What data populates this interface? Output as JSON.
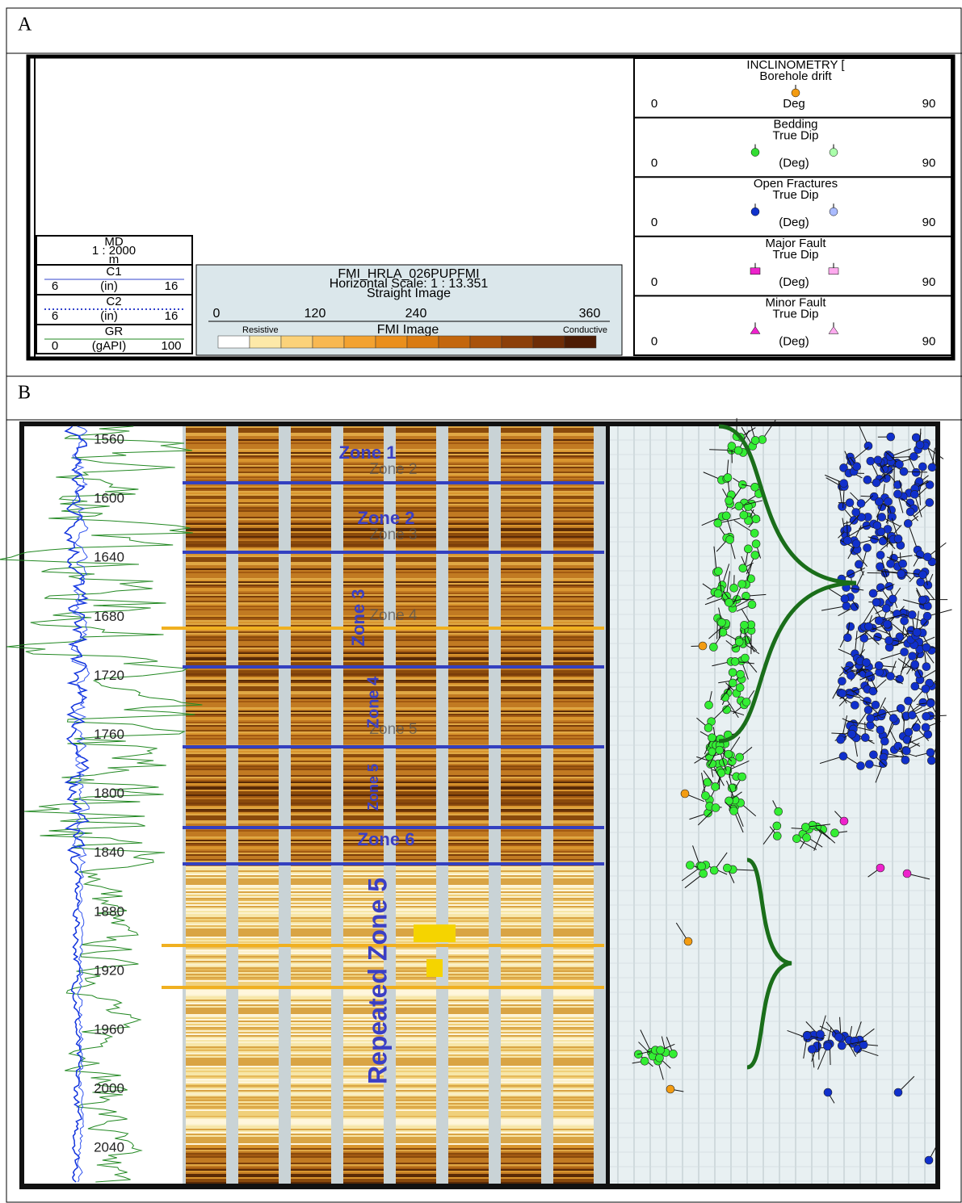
{
  "panel_a": {
    "label": "A",
    "left_header": {
      "md": [
        "MD",
        "1 : 2000",
        "m"
      ],
      "c1": {
        "name": "C1",
        "min": "6",
        "unit": "(in)",
        "max": "16"
      },
      "c2": {
        "name": "C2",
        "min": "6",
        "unit": "(in)",
        "max": "16"
      },
      "gr": {
        "name": "GR",
        "min": "0",
        "unit": "(gAPI)",
        "max": "100"
      }
    },
    "fmi": {
      "title": "FMI_HRLA_026PUPFMI",
      "scale": "Horizontal Scale: 1 : 13.351",
      "mode": "Straight Image",
      "ticks": [
        "0",
        "120",
        "240",
        "360"
      ],
      "legend": [
        "Resistive",
        "FMI Image",
        "Conductive"
      ]
    },
    "tracks": [
      {
        "title": [
          "INCLINOMETRY [",
          "Borehole drift"
        ],
        "min": "0",
        "unit": "Deg",
        "max": "90"
      },
      {
        "title": [
          "Bedding",
          "True Dip"
        ],
        "min": "0",
        "unit": "(Deg)",
        "max": "90"
      },
      {
        "title": [
          "Open Fractures",
          "True Dip"
        ],
        "min": "0",
        "unit": "(Deg)",
        "max": "90"
      },
      {
        "title": [
          "Major Fault",
          "True Dip"
        ],
        "min": "0",
        "unit": "(Deg)",
        "max": "90"
      },
      {
        "title": [
          "Minor Fault",
          "True Dip"
        ],
        "min": "0",
        "unit": "(Deg)",
        "max": "90"
      }
    ]
  },
  "panel_b": {
    "label": "B",
    "depths": [
      1560,
      1600,
      1640,
      1680,
      1720,
      1760,
      1800,
      1840,
      1880,
      1920,
      1960,
      2000,
      2040
    ],
    "zones": [
      "Zone 1",
      "Zone 2",
      "Zone 3",
      "Zone 4",
      "Zone 5",
      "Zone 6",
      "Repeated Zone 5"
    ],
    "faint_zones": [
      "Zone 2",
      "Zone 3",
      "Zone 4",
      "Zone 5"
    ]
  }
}
